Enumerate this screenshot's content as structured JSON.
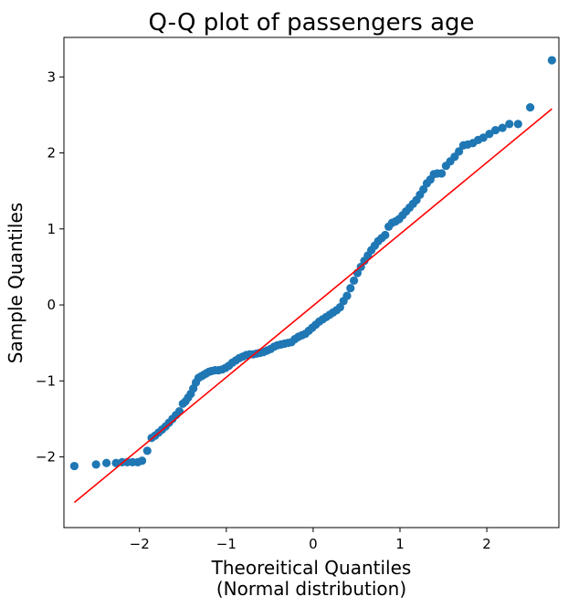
{
  "chart_data": {
    "type": "scatter",
    "title": "Q-Q plot of passengers age",
    "xlabel_line1": "Theoreitical Quantiles",
    "xlabel_line2": "(Normal distribution)",
    "ylabel": "Sample Quantiles",
    "xlim": [
      -2.87,
      2.83
    ],
    "ylim": [
      -2.93,
      3.52
    ],
    "x_ticks": [
      -2,
      -1,
      0,
      1,
      2
    ],
    "x_tick_labels": [
      "−2",
      "−1",
      "0",
      "1",
      "2"
    ],
    "y_ticks": [
      -2,
      -1,
      0,
      1,
      2,
      3
    ],
    "y_tick_labels": [
      "−2",
      "−1",
      "0",
      "1",
      "2",
      "3"
    ],
    "grid": false,
    "legend": "none",
    "colors": {
      "points": "#1f77b4",
      "line": "#ff0000"
    },
    "reference_line": {
      "x": [
        -2.75,
        2.75
      ],
      "y": [
        -2.6,
        2.58
      ]
    },
    "series": [
      {
        "x": [
          -2.75,
          -2.5,
          -2.38,
          -2.27,
          -2.2,
          -2.14,
          -2.08,
          -2.02,
          -1.97,
          -1.91,
          -1.86,
          -1.82,
          -1.78,
          -1.74,
          -1.7,
          -1.66,
          -1.62,
          -1.58,
          -1.54,
          -1.5,
          -1.47,
          -1.44,
          -1.41,
          -1.38,
          -1.35,
          -1.32,
          -1.29,
          -1.26,
          -1.23,
          -1.2,
          -1.17,
          -1.13,
          -1.09,
          -1.05,
          -1.01,
          -0.97,
          -0.93,
          -0.89,
          -0.85,
          -0.81,
          -0.77,
          -0.73,
          -0.69,
          -0.65,
          -0.61,
          -0.57,
          -0.53,
          -0.49,
          -0.45,
          -0.41,
          -0.37,
          -0.33,
          -0.29,
          -0.25,
          -0.21,
          -0.17,
          -0.13,
          -0.09,
          -0.05,
          -0.01,
          0.03,
          0.07,
          0.11,
          0.15,
          0.19,
          0.23,
          0.27,
          0.31,
          0.35,
          0.39,
          0.43,
          0.47,
          0.51,
          0.55,
          0.59,
          0.63,
          0.67,
          0.71,
          0.75,
          0.79,
          0.83,
          0.87,
          0.91,
          0.95,
          0.99,
          1.03,
          1.07,
          1.11,
          1.15,
          1.19,
          1.23,
          1.27,
          1.31,
          1.35,
          1.39,
          1.43,
          1.48,
          1.53,
          1.58,
          1.63,
          1.68,
          1.73,
          1.78,
          1.84,
          1.9,
          1.96,
          2.03,
          2.1,
          2.18,
          2.26,
          2.36,
          2.5,
          2.75
        ],
        "y": [
          -2.12,
          -2.1,
          -2.08,
          -2.08,
          -2.07,
          -2.07,
          -2.07,
          -2.07,
          -2.05,
          -1.92,
          -1.75,
          -1.72,
          -1.68,
          -1.64,
          -1.6,
          -1.55,
          -1.5,
          -1.45,
          -1.4,
          -1.3,
          -1.27,
          -1.22,
          -1.17,
          -1.1,
          -1.02,
          -0.96,
          -0.94,
          -0.92,
          -0.9,
          -0.88,
          -0.87,
          -0.86,
          -0.86,
          -0.85,
          -0.83,
          -0.8,
          -0.76,
          -0.73,
          -0.7,
          -0.68,
          -0.66,
          -0.65,
          -0.65,
          -0.64,
          -0.63,
          -0.62,
          -0.6,
          -0.58,
          -0.55,
          -0.53,
          -0.52,
          -0.51,
          -0.5,
          -0.49,
          -0.45,
          -0.42,
          -0.4,
          -0.38,
          -0.34,
          -0.3,
          -0.26,
          -0.22,
          -0.19,
          -0.16,
          -0.13,
          -0.1,
          -0.07,
          -0.03,
          0.05,
          0.12,
          0.22,
          0.32,
          0.42,
          0.5,
          0.58,
          0.65,
          0.72,
          0.78,
          0.84,
          0.88,
          0.92,
          1.03,
          1.08,
          1.1,
          1.13,
          1.18,
          1.23,
          1.28,
          1.33,
          1.38,
          1.45,
          1.52,
          1.6,
          1.65,
          1.72,
          1.73,
          1.73,
          1.83,
          1.89,
          1.95,
          2.02,
          2.1,
          2.11,
          2.13,
          2.17,
          2.2,
          2.25,
          2.3,
          2.33,
          2.38,
          2.38,
          2.6,
          3.22
        ]
      }
    ]
  }
}
